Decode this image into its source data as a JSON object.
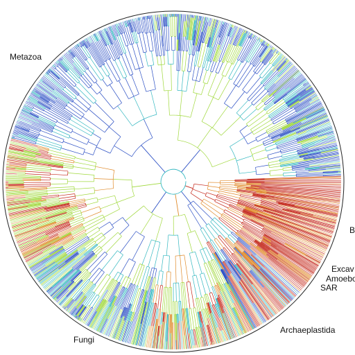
{
  "diagram": {
    "type": "circular-phylogenetic-tree",
    "labels": {
      "metazoa": "Metazoa",
      "fungi": "Fungi",
      "archaeplastida": "Archaeplastida",
      "sar": "SAR",
      "amoebozoa": "Amoebo",
      "excavata": "Excav",
      "bacteria": "B"
    },
    "colors": {
      "blue": "#2b4fc4",
      "teal": "#32b7c0",
      "green": "#9fd83a",
      "orange": "#e08a2a",
      "red": "#c4281b",
      "ring": "#222222"
    }
  }
}
